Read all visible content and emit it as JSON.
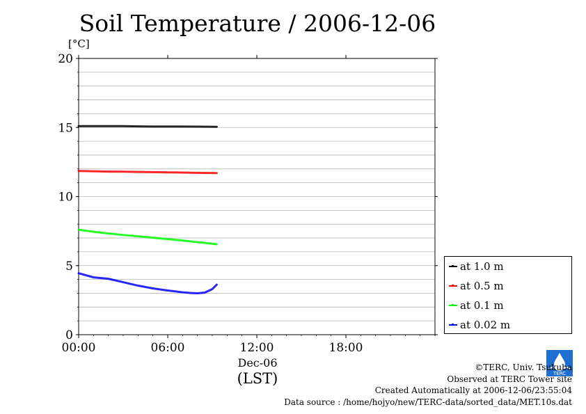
{
  "title": "Soil Temperature / 2006-12-06",
  "chart_data": {
    "type": "line",
    "ylabel": "[°C]",
    "ylim": [
      0,
      20
    ],
    "yticks": [
      0,
      5,
      10,
      15,
      20
    ],
    "xlim": [
      0,
      24
    ],
    "xticks": [
      0,
      6,
      12,
      18
    ],
    "xtick_labels": [
      "00:00",
      "06:00",
      "12:00",
      "18:00"
    ],
    "xdate_label": "Dec-06",
    "xlabel": "(LST)",
    "grid": true,
    "legend_position": "right-bottom",
    "series": [
      {
        "name": "at 1.0 m",
        "color": "#000000",
        "x": [
          0,
          1,
          2,
          3,
          4,
          5,
          6,
          7,
          8,
          9.3
        ],
        "y": [
          15.1,
          15.1,
          15.1,
          15.1,
          15.08,
          15.07,
          15.07,
          15.07,
          15.06,
          15.05
        ]
      },
      {
        "name": "at 0.5 m",
        "color": "#ff0000",
        "x": [
          0,
          1,
          2,
          3,
          4,
          5,
          6,
          7,
          8,
          9.3
        ],
        "y": [
          11.85,
          11.83,
          11.81,
          11.8,
          11.78,
          11.77,
          11.75,
          11.74,
          11.72,
          11.7
        ]
      },
      {
        "name": "at 0.1 m",
        "color": "#00ff00",
        "x": [
          0,
          1,
          2,
          3,
          4,
          5,
          6,
          7,
          8,
          9.3
        ],
        "y": [
          7.6,
          7.45,
          7.33,
          7.22,
          7.12,
          7.02,
          6.92,
          6.82,
          6.7,
          6.55
        ]
      },
      {
        "name": "at 0.02 m",
        "color": "#0000ff",
        "x": [
          0,
          1,
          2,
          3,
          4,
          5,
          6,
          7,
          7.5,
          8,
          8.5,
          9.0,
          9.3
        ],
        "y": [
          4.45,
          4.15,
          4.05,
          3.8,
          3.55,
          3.35,
          3.2,
          3.07,
          3.02,
          3.0,
          3.05,
          3.3,
          3.62
        ]
      }
    ]
  },
  "credits": {
    "line1": "©TERC, Univ. Tsukuba",
    "line2": "Observed at TERC Tower site",
    "line3": "Created Automatically at 2006-12-06/23:55:04",
    "line4": "Data source : /home/hojyo/new/TERC-data/sorted_data/MET.10s.dat"
  },
  "logo_text": "TERC",
  "colors": {
    "logo": "#1e6fd0"
  }
}
